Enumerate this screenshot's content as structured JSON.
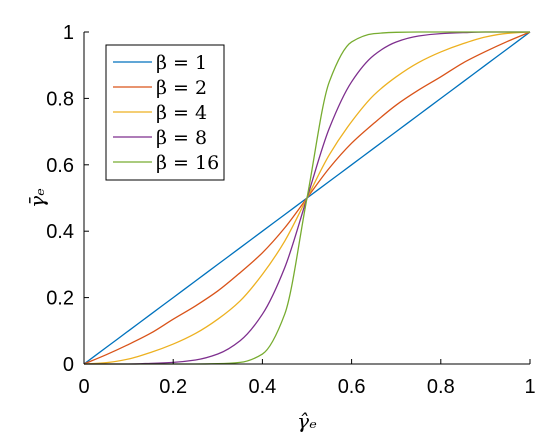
{
  "chart_data": {
    "type": "line",
    "title": "",
    "xlabel": "γ̂ₑ",
    "ylabel": "γ̄ₑ",
    "xlim": [
      0,
      1
    ],
    "ylim": [
      0,
      1
    ],
    "xticks": [
      "0",
      "0.2",
      "0.4",
      "0.6",
      "0.8",
      "1"
    ],
    "yticks": [
      "0",
      "0.2",
      "0.4",
      "0.6",
      "0.8",
      "1"
    ],
    "grid": false,
    "legend_position": "top-left",
    "x": [
      0,
      0.05,
      0.1,
      0.15,
      0.2,
      0.25,
      0.3,
      0.35,
      0.4,
      0.45,
      0.5,
      0.55,
      0.6,
      0.65,
      0.7,
      0.75,
      0.8,
      0.85,
      0.9,
      0.95,
      1
    ],
    "series": [
      {
        "name": "β = 1",
        "color": "#0072BD",
        "values": [
          0,
          0.05,
          0.1,
          0.15,
          0.2,
          0.25,
          0.3,
          0.35,
          0.4,
          0.45,
          0.5,
          0.55,
          0.6,
          0.65,
          0.7,
          0.75,
          0.8,
          0.85,
          0.9,
          0.95,
          1
        ]
      },
      {
        "name": "β = 2",
        "color": "#D95319",
        "values": [
          0,
          0.028,
          0.059,
          0.093,
          0.135,
          0.175,
          0.22,
          0.275,
          0.335,
          0.41,
          0.5,
          0.59,
          0.665,
          0.725,
          0.78,
          0.825,
          0.865,
          0.907,
          0.941,
          0.972,
          1
        ]
      },
      {
        "name": "β = 4",
        "color": "#EDB120",
        "values": [
          0,
          0.004,
          0.015,
          0.035,
          0.06,
          0.092,
          0.135,
          0.19,
          0.27,
          0.37,
          0.5,
          0.63,
          0.73,
          0.81,
          0.865,
          0.908,
          0.94,
          0.965,
          0.985,
          0.996,
          1
        ]
      },
      {
        "name": "β = 8",
        "color": "#7E2F8E",
        "values": [
          0,
          0,
          0,
          0.002,
          0.005,
          0.012,
          0.03,
          0.07,
          0.15,
          0.29,
          0.5,
          0.71,
          0.85,
          0.93,
          0.97,
          0.988,
          0.995,
          0.998,
          1,
          1,
          1
        ]
      },
      {
        "name": "β = 16",
        "color": "#77AC30",
        "values": [
          0,
          0,
          0,
          0,
          0,
          0,
          0.001,
          0.005,
          0.03,
          0.15,
          0.5,
          0.85,
          0.97,
          0.995,
          0.999,
          1,
          1,
          1,
          1,
          1,
          1
        ]
      }
    ]
  }
}
